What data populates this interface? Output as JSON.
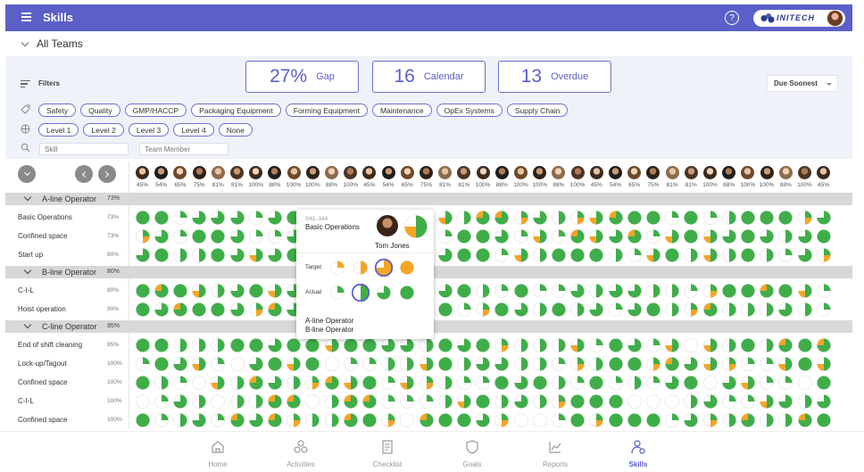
{
  "header": {
    "title": "Skills",
    "help_icon": "help-circle-icon",
    "brand": "INITECH"
  },
  "team_selector": {
    "label": "All Teams"
  },
  "filters": {
    "label": "Filters",
    "stats": [
      {
        "value": "27%",
        "label": "Gap"
      },
      {
        "value": "16",
        "label": "Calendar"
      },
      {
        "value": "13",
        "label": "Overdue"
      }
    ],
    "sort": "Due Soonest",
    "tags": [
      "Safety",
      "Quality",
      "GMP/HACCP",
      "Packaging Equipment",
      "Forming Equipment",
      "Maintenance",
      "OpEx Systems",
      "Supply Chain"
    ],
    "levels": [
      "Level 1",
      "Level 2",
      "Level 3",
      "Level 4",
      "None"
    ],
    "skill_placeholder": "Skill",
    "member_placeholder": "Team Member"
  },
  "team_member_pcts": [
    "45%",
    "54%",
    "65%",
    "75%",
    "81%",
    "81%",
    "100%",
    "88%",
    "100%",
    "100%",
    "88%",
    "100%",
    "45%",
    "54%",
    "65%",
    "75%",
    "81%",
    "81%",
    "100%",
    "88%",
    "100%",
    "100%",
    "88%",
    "100%",
    "45%",
    "54%",
    "65%",
    "75%",
    "81%",
    "81%",
    "100%",
    "88%",
    "100%",
    "100%",
    "88%",
    "100%",
    "45%"
  ],
  "groups": [
    {
      "name": "A-line Operator",
      "pct": "73%",
      "skills": [
        {
          "name": "Basic Operations",
          "pct": "73%"
        },
        {
          "name": "Confined space",
          "pct": "73%"
        },
        {
          "name": "Start up",
          "pct": "80%"
        }
      ]
    },
    {
      "name": "B-line Operator",
      "pct": "80%",
      "skills": [
        {
          "name": "C-I-L",
          "pct": "80%"
        },
        {
          "name": "Hoist operation",
          "pct": "90%"
        }
      ]
    },
    {
      "name": "C-line Operator",
      "pct": "95%",
      "skills": [
        {
          "name": "End of shift cleaning",
          "pct": "95%"
        },
        {
          "name": "Lock-up/Tagout",
          "pct": "100%"
        },
        {
          "name": "Confined space",
          "pct": "100%"
        },
        {
          "name": "C-I-L",
          "pct": "100%"
        },
        {
          "name": "Confined space",
          "pct": "100%"
        }
      ]
    }
  ],
  "popup": {
    "code": "SKL-344",
    "skill": "Basic Operations",
    "person": "Tom Jones",
    "target_label": "Target",
    "actual_label": "Actual",
    "target_levels": [
      0.25,
      0.5,
      0.75,
      1.0
    ],
    "target_selected": 2,
    "actual_levels": [
      0.25,
      0.5,
      0.75,
      1.0
    ],
    "actual_selected": 1,
    "current_level": 0.75,
    "groups": [
      "A-line Operator",
      "B-line Operator"
    ]
  },
  "colors": {
    "accent": "#5b5fc7",
    "actual": "#3fae49",
    "gap": "#f5a524",
    "empty": "#e8e8e8"
  },
  "bottom_nav": [
    {
      "label": "Home",
      "icon": "home-icon"
    },
    {
      "label": "Activities",
      "icon": "activities-icon"
    },
    {
      "label": "Checklist",
      "icon": "checklist-icon"
    },
    {
      "label": "Goals",
      "icon": "shield-icon"
    },
    {
      "label": "Reports",
      "icon": "chart-line-icon"
    },
    {
      "label": "Skills",
      "icon": "skills-user-icon",
      "active": true
    }
  ]
}
